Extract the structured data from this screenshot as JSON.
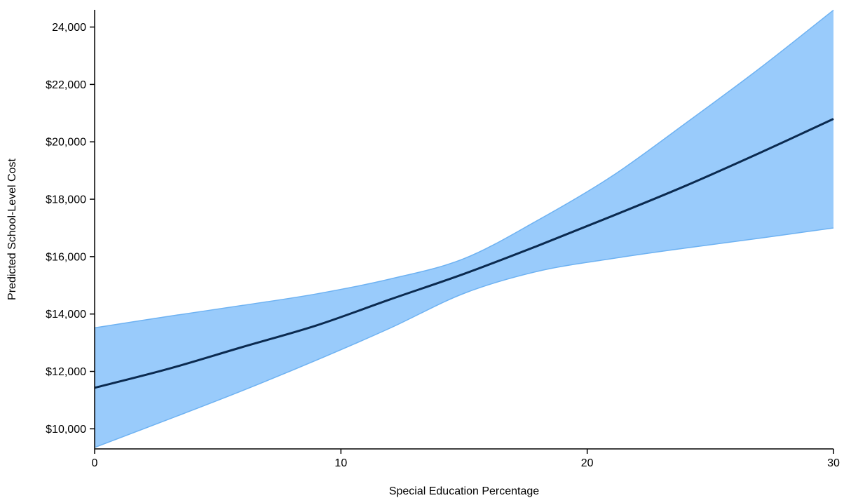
{
  "chart_data": {
    "type": "line",
    "title": "",
    "xlabel": "Special Education Percentage",
    "ylabel": "Predicted School-Level Cost",
    "xlim": [
      0,
      30
    ],
    "ylim": [
      9300,
      24600
    ],
    "x_ticks": [
      0,
      10,
      20,
      30
    ],
    "x_tick_labels": [
      "0",
      "10",
      "20",
      "30"
    ],
    "y_ticks": [
      10000,
      12000,
      14000,
      16000,
      18000,
      20000,
      22000,
      24000
    ],
    "y_tick_labels": [
      "$10,000",
      "$12,000",
      "$14,000",
      "$16,000",
      "$18,000",
      "$20,000",
      "$22,000",
      "24,000"
    ],
    "grid": false,
    "legend": "none",
    "series": [
      {
        "kind": "line",
        "color": "#0b2a4f",
        "x": [
          0,
          3,
          6,
          9,
          12,
          15,
          18,
          21,
          24,
          27,
          30
        ],
        "y": [
          11430,
          12090,
          12850,
          13600,
          14510,
          15400,
          16380,
          17410,
          18470,
          19610,
          20800
        ]
      },
      {
        "kind": "confidence_band",
        "color": "#99cbfb",
        "edge_color": "#6eb2f2",
        "x": [
          0,
          3,
          6,
          9,
          12,
          15,
          18,
          21,
          24,
          27,
          30
        ],
        "upper": [
          13520,
          13920,
          14300,
          14700,
          15220,
          15930,
          17270,
          18800,
          20650,
          22560,
          24590
        ],
        "lower": [
          9350,
          10330,
          11330,
          12390,
          13510,
          14720,
          15490,
          15930,
          16300,
          16640,
          17000
        ]
      }
    ]
  }
}
